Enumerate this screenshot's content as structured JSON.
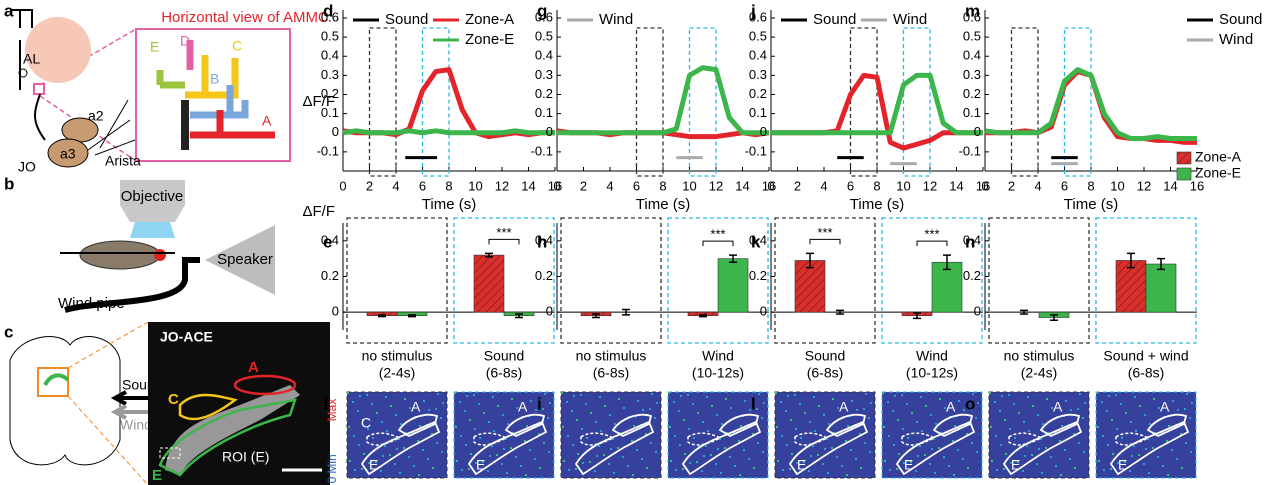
{
  "diagram": {
    "a": "a",
    "b": "b",
    "c": "c",
    "title": "Horizontal view of AMMC",
    "branches": [
      "E",
      "D",
      "C",
      "B",
      "A"
    ],
    "al": "AL",
    "a2": "a2",
    "a3": "a3",
    "jo": "JO",
    "arista": "Arista",
    "objective": "Objective",
    "speaker": "Speaker",
    "pipe": "Wind pipe",
    "image_title": "JO-ACE",
    "zone_a": "A",
    "zone_c": "C",
    "zone_e": "E",
    "roi": "ROI (E)",
    "sound": "Sound",
    "wind": "Wind"
  },
  "colorbar": {
    "max": "Max",
    "min": "Min",
    "zero": "0"
  },
  "heatmaps": [
    {
      "panel": "f",
      "images": [
        {
          "labels": [
            "C",
            "A",
            "E"
          ]
        },
        {
          "labels": [
            "A",
            "E"
          ]
        }
      ]
    },
    {
      "panel": "i",
      "images": [
        {
          "labels": []
        },
        {
          "labels": []
        }
      ]
    },
    {
      "panel": "l",
      "images": [
        {
          "labels": [
            "A",
            "E"
          ]
        },
        {
          "labels": [
            "A",
            "E"
          ]
        }
      ]
    },
    {
      "panel": "o",
      "images": [
        {
          "labels": [
            "A",
            "E"
          ]
        },
        {
          "labels": [
            "A",
            "E"
          ]
        }
      ]
    }
  ],
  "chart_data": [
    {
      "panel": "d",
      "type": "line",
      "x": [
        0,
        1,
        2,
        3,
        4,
        5,
        6,
        7,
        8,
        9,
        10,
        11,
        12,
        13,
        14,
        15,
        16
      ],
      "xlim": [
        0,
        16
      ],
      "xticks": [
        0,
        2,
        4,
        6,
        8,
        10,
        12,
        14,
        16
      ],
      "ylim": [
        -0.2,
        0.6
      ],
      "yticks": [
        -0.1,
        0,
        0.1,
        0.2,
        0.3,
        0.4,
        0.5,
        0.6
      ],
      "xlabel": "Time (s)",
      "ylabel": "ΔF/F",
      "legend": true,
      "legend_loc": "upper left",
      "series": [
        {
          "name": "Zone-A",
          "color": "#e3242b",
          "values": [
            0.01,
            0,
            0,
            0,
            -0.01,
            0.02,
            0.22,
            0.32,
            0.33,
            0.12,
            0,
            -0.02,
            -0.01,
            0,
            -0.01,
            0,
            0
          ]
        },
        {
          "name": "Zone-E",
          "color": "#3cb54a",
          "values": [
            0,
            0.01,
            0,
            0,
            0,
            0.01,
            0,
            0.01,
            0,
            0,
            0,
            0,
            0,
            0.01,
            0,
            0,
            0
          ]
        }
      ],
      "windows": [
        {
          "color": "#333333",
          "range": [
            2,
            4
          ]
        },
        {
          "color": "#29b6e8",
          "range": [
            6,
            8
          ]
        }
      ],
      "stimuli": [
        {
          "name": "Sound",
          "color": "#000000",
          "range": [
            4.7,
            7.1
          ]
        }
      ]
    },
    {
      "panel": "g",
      "type": "line",
      "x": [
        0,
        1,
        2,
        3,
        4,
        5,
        6,
        7,
        8,
        9,
        10,
        11,
        12,
        13,
        14,
        15,
        16
      ],
      "xlim": [
        0,
        16
      ],
      "xticks": [
        0,
        2,
        4,
        6,
        8,
        10,
        12,
        14,
        16
      ],
      "ylim": [
        -0.2,
        0.6
      ],
      "yticks": [
        -0.1,
        0,
        0.1,
        0.2,
        0.3,
        0.4,
        0.5,
        0.6
      ],
      "xlabel": "Time (s)",
      "legend": false,
      "legend_loc": "upper left",
      "series": [
        {
          "color": "#e3242b",
          "values": [
            0.01,
            0,
            0,
            0,
            -0.01,
            0,
            0,
            0,
            0,
            -0.01,
            -0.02,
            -0.02,
            -0.02,
            -0.01,
            0,
            -0.01,
            0
          ]
        },
        {
          "color": "#3cb54a",
          "values": [
            0,
            0,
            0,
            0,
            0,
            0,
            0,
            0,
            0,
            0.02,
            0.3,
            0.34,
            0.33,
            0.08,
            0,
            0,
            0
          ]
        }
      ],
      "windows": [
        {
          "color": "#333333",
          "range": [
            6,
            8
          ]
        },
        {
          "color": "#29b6e8",
          "range": [
            10,
            12
          ]
        }
      ],
      "stimuli": [
        {
          "name": "Wind",
          "color": "#aaaaaa",
          "range": [
            9,
            11
          ]
        }
      ]
    },
    {
      "panel": "j",
      "type": "line",
      "x": [
        0,
        1,
        2,
        3,
        4,
        5,
        6,
        7,
        8,
        9,
        10,
        11,
        12,
        13,
        14,
        15,
        16
      ],
      "xlim": [
        0,
        16
      ],
      "xticks": [
        0,
        2,
        4,
        6,
        8,
        10,
        12,
        14,
        16
      ],
      "ylim": [
        -0.2,
        0.6
      ],
      "yticks": [
        -0.1,
        0,
        0.1,
        0.2,
        0.3,
        0.4,
        0.5,
        0.6
      ],
      "xlabel": "Time (s)",
      "legend": false,
      "legend_loc": "upper left",
      "series": [
        {
          "color": "#e3242b",
          "values": [
            0,
            0,
            0,
            0,
            0,
            0.01,
            0.2,
            0.3,
            0.29,
            -0.05,
            -0.08,
            -0.06,
            -0.04,
            0,
            0,
            0,
            0
          ]
        },
        {
          "color": "#3cb54a",
          "values": [
            0,
            0,
            0,
            0,
            0,
            0,
            0,
            0,
            0,
            0,
            0.25,
            0.3,
            0.3,
            0.05,
            0,
            0,
            0
          ]
        }
      ],
      "windows": [
        {
          "color": "#333333",
          "range": [
            6,
            8
          ]
        },
        {
          "color": "#29b6e8",
          "range": [
            10,
            12
          ]
        }
      ],
      "stimuli": [
        {
          "name": "Sound",
          "color": "#000000",
          "range": [
            5,
            7
          ]
        },
        {
          "name": "Wind",
          "color": "#aaaaaa",
          "range": [
            9,
            11
          ]
        }
      ]
    },
    {
      "panel": "m",
      "type": "line",
      "x": [
        0,
        1,
        2,
        3,
        4,
        5,
        6,
        7,
        8,
        9,
        10,
        11,
        12,
        13,
        14,
        15,
        16
      ],
      "xlim": [
        0,
        16
      ],
      "xticks": [
        0,
        2,
        4,
        6,
        8,
        10,
        12,
        14,
        16
      ],
      "ylim": [
        -0.2,
        0.6
      ],
      "yticks": [
        -0.1,
        0,
        0.1,
        0.2,
        0.3,
        0.4,
        0.5,
        0.6
      ],
      "xlabel": "Time (s)",
      "legend": false,
      "legend_loc": "upper right",
      "series": [
        {
          "color": "#e3242b",
          "values": [
            0,
            0,
            0,
            0.01,
            0,
            0.03,
            0.25,
            0.32,
            0.3,
            0.08,
            -0.02,
            -0.03,
            -0.03,
            -0.04,
            -0.04,
            -0.05,
            -0.05
          ]
        },
        {
          "color": "#3cb54a",
          "values": [
            0.01,
            0,
            0,
            0,
            0,
            0.05,
            0.27,
            0.33,
            0.3,
            0.1,
            0,
            -0.03,
            -0.03,
            -0.02,
            -0.03,
            -0.03,
            -0.03
          ]
        }
      ],
      "windows": [
        {
          "color": "#333333",
          "range": [
            2,
            4
          ]
        },
        {
          "color": "#29b6e8",
          "range": [
            6,
            8
          ]
        }
      ],
      "stimuli": [
        {
          "name": "Sound",
          "color": "#000000",
          "range": [
            5,
            7
          ]
        },
        {
          "name": "Wind",
          "color": "#aaaaaa",
          "range": [
            5,
            7
          ]
        }
      ]
    },
    {
      "panel": "e",
      "type": "bar",
      "categories": [
        "no stimulus",
        "Sound"
      ],
      "sublabels": [
        "(2-4s)",
        "(6-8s)"
      ],
      "ylim": [
        -0.1,
        0.5
      ],
      "yticks": [
        0,
        0.2,
        0.4
      ],
      "ylabel": "ΔF/F",
      "legend": false,
      "box_colors": [
        "#333333",
        "#29b6e8"
      ],
      "series": [
        {
          "color": "#d9302c",
          "hatch": true,
          "values": [
            -0.02,
            0.32
          ],
          "errors": [
            0.005,
            0.01
          ]
        },
        {
          "color": "#3cb54a",
          "values": [
            -0.02,
            -0.02
          ],
          "errors": [
            0.005,
            0.01
          ]
        }
      ],
      "significance": [
        null,
        "***"
      ]
    },
    {
      "panel": "h",
      "type": "bar",
      "categories": [
        "no stimulus",
        "Wind"
      ],
      "sublabels": [
        "(6-8s)",
        "(10-12s)"
      ],
      "ylim": [
        -0.1,
        0.5
      ],
      "yticks": [
        0,
        0.2,
        0.4
      ],
      "legend": false,
      "box_colors": [
        "#333333",
        "#29b6e8"
      ],
      "series": [
        {
          "color": "#d9302c",
          "hatch": true,
          "values": [
            -0.02,
            -0.02
          ],
          "errors": [
            0.01,
            0.005
          ]
        },
        {
          "color": "#3cb54a",
          "values": [
            0,
            0.3
          ],
          "errors": [
            0.015,
            0.02
          ]
        }
      ],
      "significance": [
        null,
        "***"
      ]
    },
    {
      "panel": "k",
      "type": "bar",
      "categories": [
        "Sound",
        "Wind"
      ],
      "sublabels": [
        "(6-8s)",
        "(10-12s)"
      ],
      "ylim": [
        -0.1,
        0.5
      ],
      "yticks": [
        0,
        0.2,
        0.4
      ],
      "legend": false,
      "box_colors": [
        "#333333",
        "#29b6e8"
      ],
      "series": [
        {
          "color": "#d9302c",
          "hatch": true,
          "values": [
            0.29,
            -0.02
          ],
          "errors": [
            0.04,
            0.015
          ]
        },
        {
          "color": "#3cb54a",
          "values": [
            0,
            0.28
          ],
          "errors": [
            0.01,
            0.04
          ]
        }
      ],
      "significance": [
        "***",
        "***"
      ]
    },
    {
      "panel": "n",
      "type": "bar",
      "categories": [
        "no stimulus",
        "Sound + wind"
      ],
      "sublabels": [
        "(2-4s)",
        "(6-8s)"
      ],
      "ylim": [
        -0.1,
        0.5
      ],
      "yticks": [
        0,
        0.2,
        0.4
      ],
      "legend": true,
      "box_colors": [
        "#333333",
        "#29b6e8"
      ],
      "series": [
        {
          "name": "Zone-A",
          "color": "#d9302c",
          "hatch": true,
          "values": [
            0,
            0.29
          ],
          "errors": [
            0.01,
            0.04
          ]
        },
        {
          "name": "Zone-E",
          "color": "#3cb54a",
          "values": [
            -0.03,
            0.27
          ],
          "errors": [
            0.015,
            0.03
          ]
        }
      ],
      "significance": [
        null,
        null
      ]
    }
  ]
}
